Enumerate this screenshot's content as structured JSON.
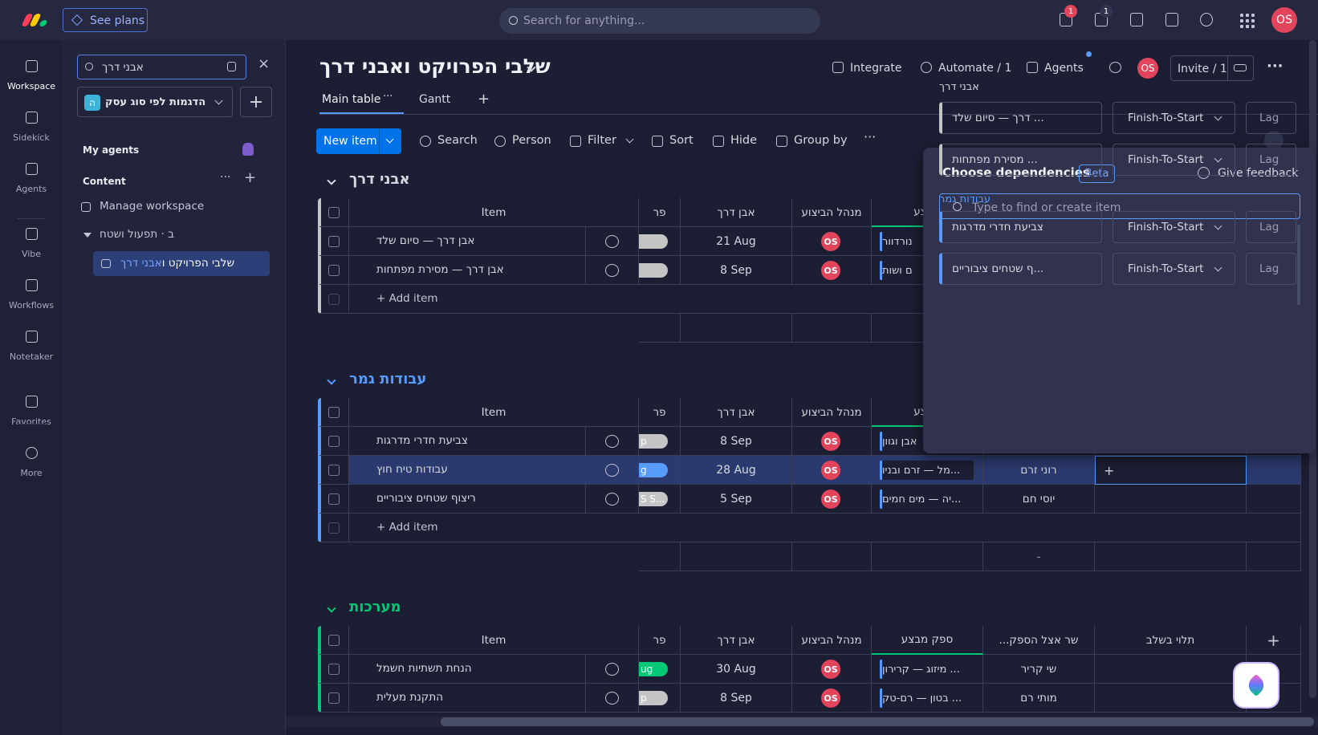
{
  "topbar": {
    "see_plans": "See plans",
    "search": "Search for anything...",
    "notifications": "1",
    "inbox": "1",
    "avatar": "OS"
  },
  "sidenav": [
    "Workspace",
    "Sidekick",
    "Agents",
    "Vibe",
    "Workflows",
    "Notetaker",
    "Favorites",
    "More"
  ],
  "workspace_panel": {
    "search": "אבני דרך",
    "workspace_icon": "ה",
    "workspace": "הדגמות לפי סוג עסק",
    "my_agents": "My agents",
    "content": "Content",
    "manage": "Manage workspace",
    "folder": "ב · תפעול ושטח",
    "board": "שלבי הפרויקט ו",
    "board_match": "אבני דרך"
  },
  "board": {
    "title": "שלבי הפרויקט ואבני דרך",
    "actions": [
      "Integrate",
      "Automate / 1",
      "Agents"
    ],
    "avatar": "OS",
    "invite": "Invite / 1",
    "tabs": [
      "Main table",
      "Gantt"
    ],
    "new_item": "New item",
    "tools": [
      "Search",
      "Person",
      "Filter",
      "Sort",
      "Hide",
      "Group by"
    ]
  },
  "groups": [
    {
      "name": "אבני דרך",
      "color": "#c4c4c4",
      "title_color": "#d5d8df",
      "columns": [
        "Item",
        "פר",
        "אבן דרך",
        "מנהל הביצוע",
        "מבצע"
      ],
      "rows": [
        {
          "item": "אבן דרך — סיום שלד",
          "status_color": "#c4c4c4",
          "date": "21 Aug",
          "owner": "OS",
          "supplier": "נורדוור"
        },
        {
          "item": "אבן דרך — מסירת מפתחות",
          "status_color": "#c4c4c4",
          "date": "8 Sep",
          "owner": "OS",
          "supplier": "ם ושות"
        }
      ],
      "add": "+ Add item"
    },
    {
      "name": "עבודות גמר",
      "color": "#579bfc",
      "title_color": "#579bfc",
      "columns": [
        "Item",
        "פר",
        "אבן דרך",
        "מנהל הביצוע",
        "מבצע"
      ],
      "rows": [
        {
          "item": "צביעת חדרי מדרגות",
          "status": "p",
          "status_color": "#c4c4c4",
          "date": "8 Sep",
          "owner": "OS",
          "supplier": "אבן וגוון"
        },
        {
          "item": "עבודות טיח חוץ",
          "status": "g",
          "status_color": "#579bfc",
          "date": "28 Aug",
          "owner": "OS",
          "supplier": "...מל — זרם ובניו",
          "rep": "רוני זרם",
          "selected": true
        },
        {
          "item": "ריצוף שטחים ציבוריים",
          "status": "S S...",
          "status_color": "#c4c4c4",
          "date": "5 Sep",
          "owner": "OS",
          "supplier": "...יה — מים חמים",
          "rep": "יוסי חם"
        }
      ],
      "add": "+ Add item",
      "summary": "-"
    },
    {
      "name": "מערכות",
      "color": "#00c875",
      "title_color": "#00c875",
      "columns": [
        "Item",
        "פר",
        "אבן דרך",
        "מנהל הביצוע",
        "ספק מבצע",
        "שר אצל הספק...",
        "תלוי בשלב"
      ],
      "rows": [
        {
          "item": "הנחת תשתיות חשמל",
          "status": "ug",
          "status_color": "#00c875",
          "date": "30 Aug",
          "owner": "OS",
          "supplier": "... מיזוג — קרירון",
          "rep": "שי קריר"
        },
        {
          "item": "התקנת מעלית",
          "status": "p",
          "status_color": "#c4c4c4",
          "date": "8 Sep",
          "owner": "OS",
          "supplier": "... בטון — רם-טק",
          "rep": "מותי רם"
        }
      ]
    }
  ],
  "dependencies": {
    "title": "Choose dependencies",
    "badge": "Beta",
    "feedback": "Give feedback",
    "placeholder": "Type to find or create item",
    "groups": [
      {
        "name": "אבני דרך",
        "color": "#c4c4c4",
        "title_color": "#d5d8df",
        "items": [
          {
            "item": "... דרך — סיום שלד",
            "type": "Finish-To-Start",
            "lag": "Lag"
          },
          {
            "item": "... מסירת מפתחות",
            "type": "Finish-To-Start",
            "lag": "Lag"
          }
        ]
      },
      {
        "name": "עבודות גמר",
        "color": "#579bfc",
        "title_color": "#579bfc",
        "items": [
          {
            "item": "צביעת חדרי מדרגות",
            "type": "Finish-To-Start",
            "lag": "Lag"
          },
          {
            "item": "...ף שטחים ציבוריים",
            "type": "Finish-To-Start",
            "lag": "Lag"
          }
        ]
      }
    ]
  }
}
